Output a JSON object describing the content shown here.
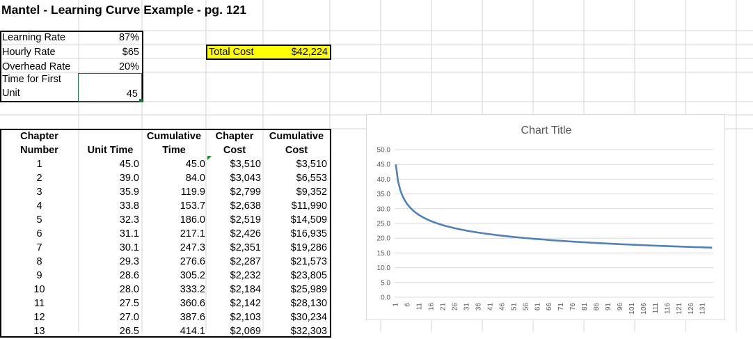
{
  "title": "Mantel - Learning Curve Example - pg. 121",
  "inputs": [
    {
      "label": "Learning Rate",
      "value": "87%"
    },
    {
      "label": "Hourly Rate",
      "value": "$65"
    },
    {
      "label": "Overhead Rate",
      "value": "20%"
    },
    {
      "label_line1": "Time for First",
      "label_line2": "Unit",
      "value": "45"
    }
  ],
  "total": {
    "label": "Total Cost",
    "value": "$42,224"
  },
  "table": {
    "headers": [
      {
        "line1": "Chapter",
        "line2": "Number"
      },
      {
        "line1": "",
        "line2": "Unit Time"
      },
      {
        "line1": "Cumulative",
        "line2": "Time"
      },
      {
        "line1": "Chapter",
        "line2": "Cost"
      },
      {
        "line1": "Cumulative",
        "line2": "Cost"
      }
    ],
    "rows": [
      [
        "1",
        "45.0",
        "45.0",
        "$3,510",
        "$3,510"
      ],
      [
        "2",
        "39.0",
        "84.0",
        "$3,043",
        "$6,553"
      ],
      [
        "3",
        "35.9",
        "119.9",
        "$2,799",
        "$9,352"
      ],
      [
        "4",
        "33.8",
        "153.7",
        "$2,638",
        "$11,990"
      ],
      [
        "5",
        "32.3",
        "186.0",
        "$2,519",
        "$14,509"
      ],
      [
        "6",
        "31.1",
        "217.1",
        "$2,426",
        "$16,935"
      ],
      [
        "7",
        "30.1",
        "247.3",
        "$2,351",
        "$19,286"
      ],
      [
        "8",
        "29.3",
        "276.6",
        "$2,287",
        "$21,573"
      ],
      [
        "9",
        "28.6",
        "305.2",
        "$2,232",
        "$23,805"
      ],
      [
        "10",
        "28.0",
        "333.2",
        "$2,184",
        "$25,989"
      ],
      [
        "11",
        "27.5",
        "360.6",
        "$2,142",
        "$28,130"
      ],
      [
        "12",
        "27.0",
        "387.6",
        "$2,103",
        "$30,234"
      ],
      [
        "13",
        "26.5",
        "414.1",
        "$2,069",
        "$32,303"
      ]
    ]
  },
  "chart_data": {
    "type": "line",
    "title": "Chart Title",
    "xlabel": "",
    "ylabel": "",
    "ylim": [
      0,
      50
    ],
    "yticks": [
      "0.0",
      "5.0",
      "10.0",
      "15.0",
      "20.0",
      "25.0",
      "30.0",
      "35.0",
      "40.0",
      "45.0",
      "50.0"
    ],
    "x_count": 135,
    "xtick_labels": [
      "1",
      "6",
      "11",
      "16",
      "21",
      "26",
      "31",
      "36",
      "41",
      "46",
      "51",
      "56",
      "61",
      "66",
      "71",
      "76",
      "81",
      "86",
      "91",
      "96",
      "101",
      "106",
      "111",
      "116",
      "121",
      "126",
      "131"
    ],
    "series": [
      {
        "color": "#4f81bd",
        "first_unit": 45,
        "learning_rate": 0.87,
        "sample_x": [
          1,
          2,
          3,
          4,
          5,
          6,
          7,
          8,
          9,
          10,
          11,
          12,
          13,
          20,
          40,
          60,
          80,
          100,
          120,
          135
        ],
        "sample_y": [
          45.0,
          39.0,
          35.9,
          33.8,
          32.3,
          31.1,
          30.1,
          29.3,
          28.6,
          28.0,
          27.5,
          27.0,
          26.5,
          23.6,
          20.2,
          18.5,
          17.3,
          16.5,
          15.8,
          15.4
        ]
      }
    ],
    "gridlines": true,
    "legend": "none"
  }
}
